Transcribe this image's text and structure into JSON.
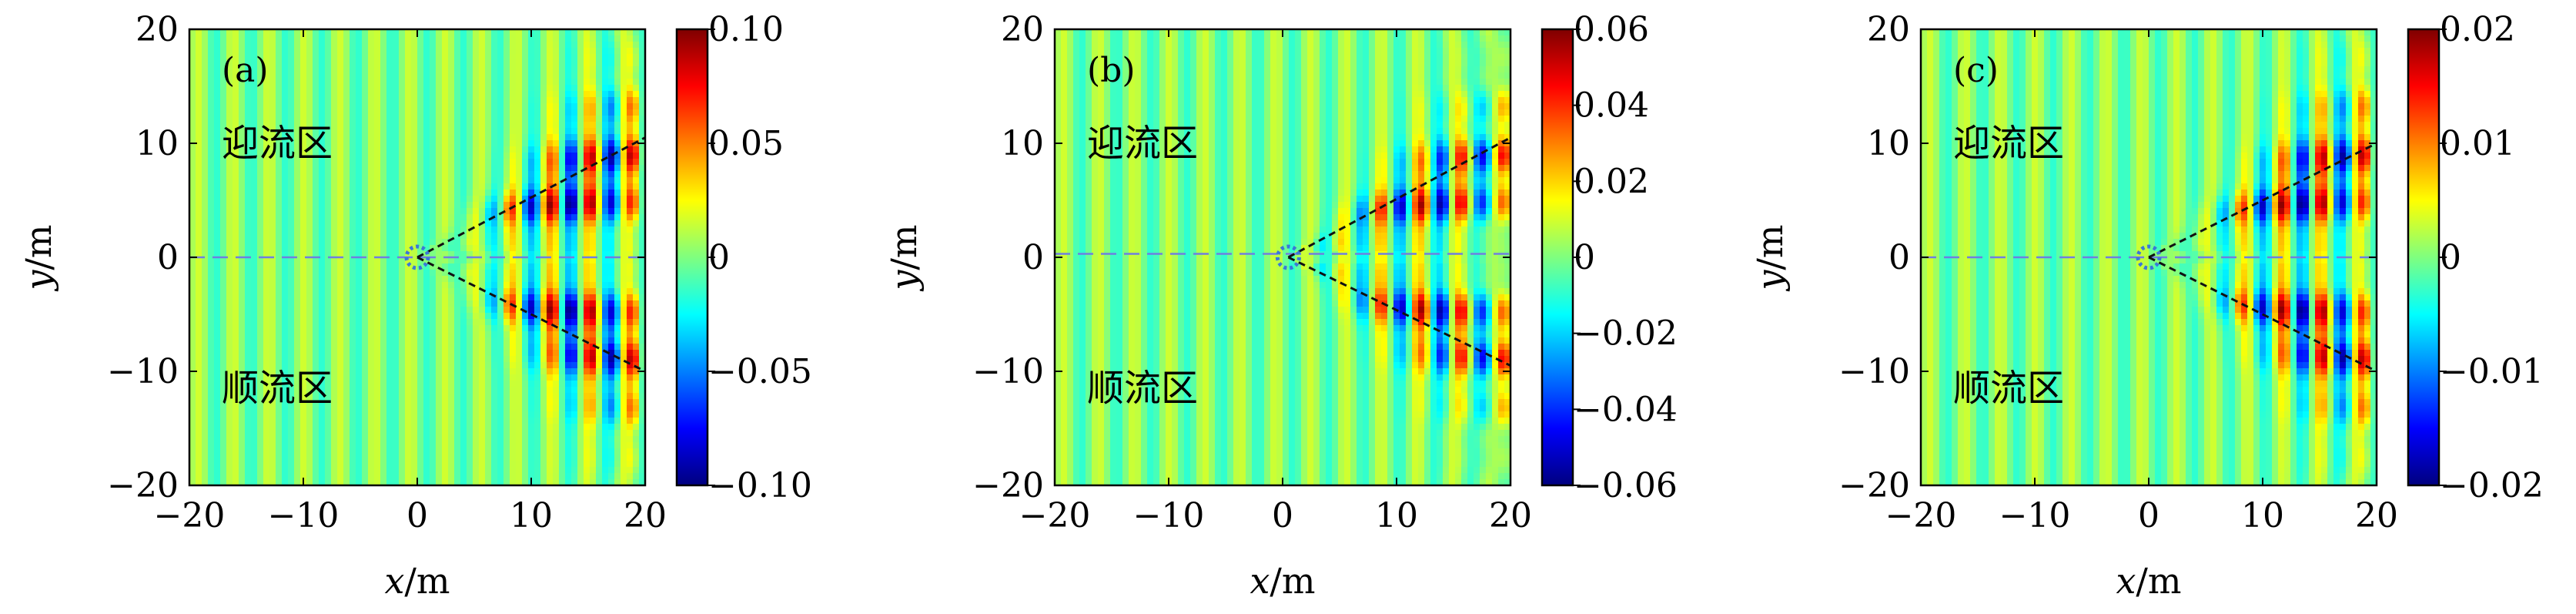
{
  "figure": {
    "x_label_var": "x",
    "x_label_unit": "/m",
    "y_label_var": "y",
    "y_label_unit": "/m"
  },
  "chart_data": [
    {
      "type": "heatmap",
      "panel_label": "(a)",
      "xlim": [
        -20,
        20
      ],
      "ylim": [
        -20,
        20
      ],
      "x_ticks": [
        -20,
        -10,
        0,
        10,
        20
      ],
      "x_tick_labels": [
        "−20",
        "−10",
        "0",
        "10",
        "20"
      ],
      "y_ticks": [
        20,
        10,
        0,
        -10,
        -20
      ],
      "y_tick_labels": [
        "20",
        "10",
        "0",
        "−10",
        "−20"
      ],
      "zones": {
        "upstream": "迎流区",
        "downstream": "顺流区"
      },
      "colorbar": {
        "min": -0.1,
        "max": 0.1,
        "ticks": [
          0.1,
          0.05,
          0,
          -0.05,
          -0.1
        ],
        "tick_labels": [
          "0.10",
          "0.05",
          "0",
          "−0.05",
          "−0.10"
        ]
      },
      "colormap": "jet",
      "source_position": [
        0,
        0
      ],
      "wedge_lines": [
        [
          [
            0,
            0
          ],
          [
            20,
            10.5
          ]
        ],
        [
          [
            0,
            0
          ],
          [
            20,
            -10
          ]
        ]
      ],
      "centerline_y": 0
    },
    {
      "type": "heatmap",
      "panel_label": "(b)",
      "xlim": [
        -20,
        20
      ],
      "ylim": [
        -20,
        20
      ],
      "x_ticks": [
        -20,
        -10,
        0,
        10,
        20
      ],
      "x_tick_labels": [
        "−20",
        "−10",
        "0",
        "10",
        "20"
      ],
      "y_ticks": [
        20,
        10,
        0,
        -10,
        -20
      ],
      "y_tick_labels": [
        "20",
        "10",
        "0",
        "−10",
        "−20"
      ],
      "zones": {
        "upstream": "迎流区",
        "downstream": "顺流区"
      },
      "colorbar": {
        "min": -0.06,
        "max": 0.06,
        "ticks": [
          0.06,
          0.04,
          0.02,
          0,
          -0.02,
          -0.04,
          -0.06
        ],
        "tick_labels": [
          "0.06",
          "0.04",
          "0.02",
          "0",
          "−0.02",
          "−0.04",
          "−0.06"
        ]
      },
      "colormap": "jet",
      "source_position": [
        0.5,
        0
      ],
      "wedge_lines": [
        [
          [
            0.5,
            0
          ],
          [
            20,
            10.5
          ]
        ],
        [
          [
            0.5,
            0
          ],
          [
            20,
            -9.5
          ]
        ]
      ],
      "centerline_y": 0.3
    },
    {
      "type": "heatmap",
      "panel_label": "(c)",
      "xlim": [
        -20,
        20
      ],
      "ylim": [
        -20,
        20
      ],
      "x_ticks": [
        -20,
        -10,
        0,
        10,
        20
      ],
      "x_tick_labels": [
        "−20",
        "−10",
        "0",
        "10",
        "20"
      ],
      "y_ticks": [
        20,
        10,
        0,
        -10,
        -20
      ],
      "y_tick_labels": [
        "20",
        "10",
        "0",
        "−10",
        "−20"
      ],
      "zones": {
        "upstream": "迎流区",
        "downstream": "顺流区"
      },
      "colorbar": {
        "min": -0.02,
        "max": 0.02,
        "ticks": [
          0.02,
          0.01,
          0,
          -0.01,
          -0.02
        ],
        "tick_labels": [
          "0.02",
          "0.01",
          "0",
          "−0.01",
          "−0.02"
        ]
      },
      "colormap": "jet",
      "source_position": [
        0,
        0
      ],
      "wedge_lines": [
        [
          [
            0,
            0
          ],
          [
            20,
            10
          ]
        ],
        [
          [
            0,
            0
          ],
          [
            20,
            -10
          ]
        ]
      ],
      "centerline_y": 0
    }
  ]
}
